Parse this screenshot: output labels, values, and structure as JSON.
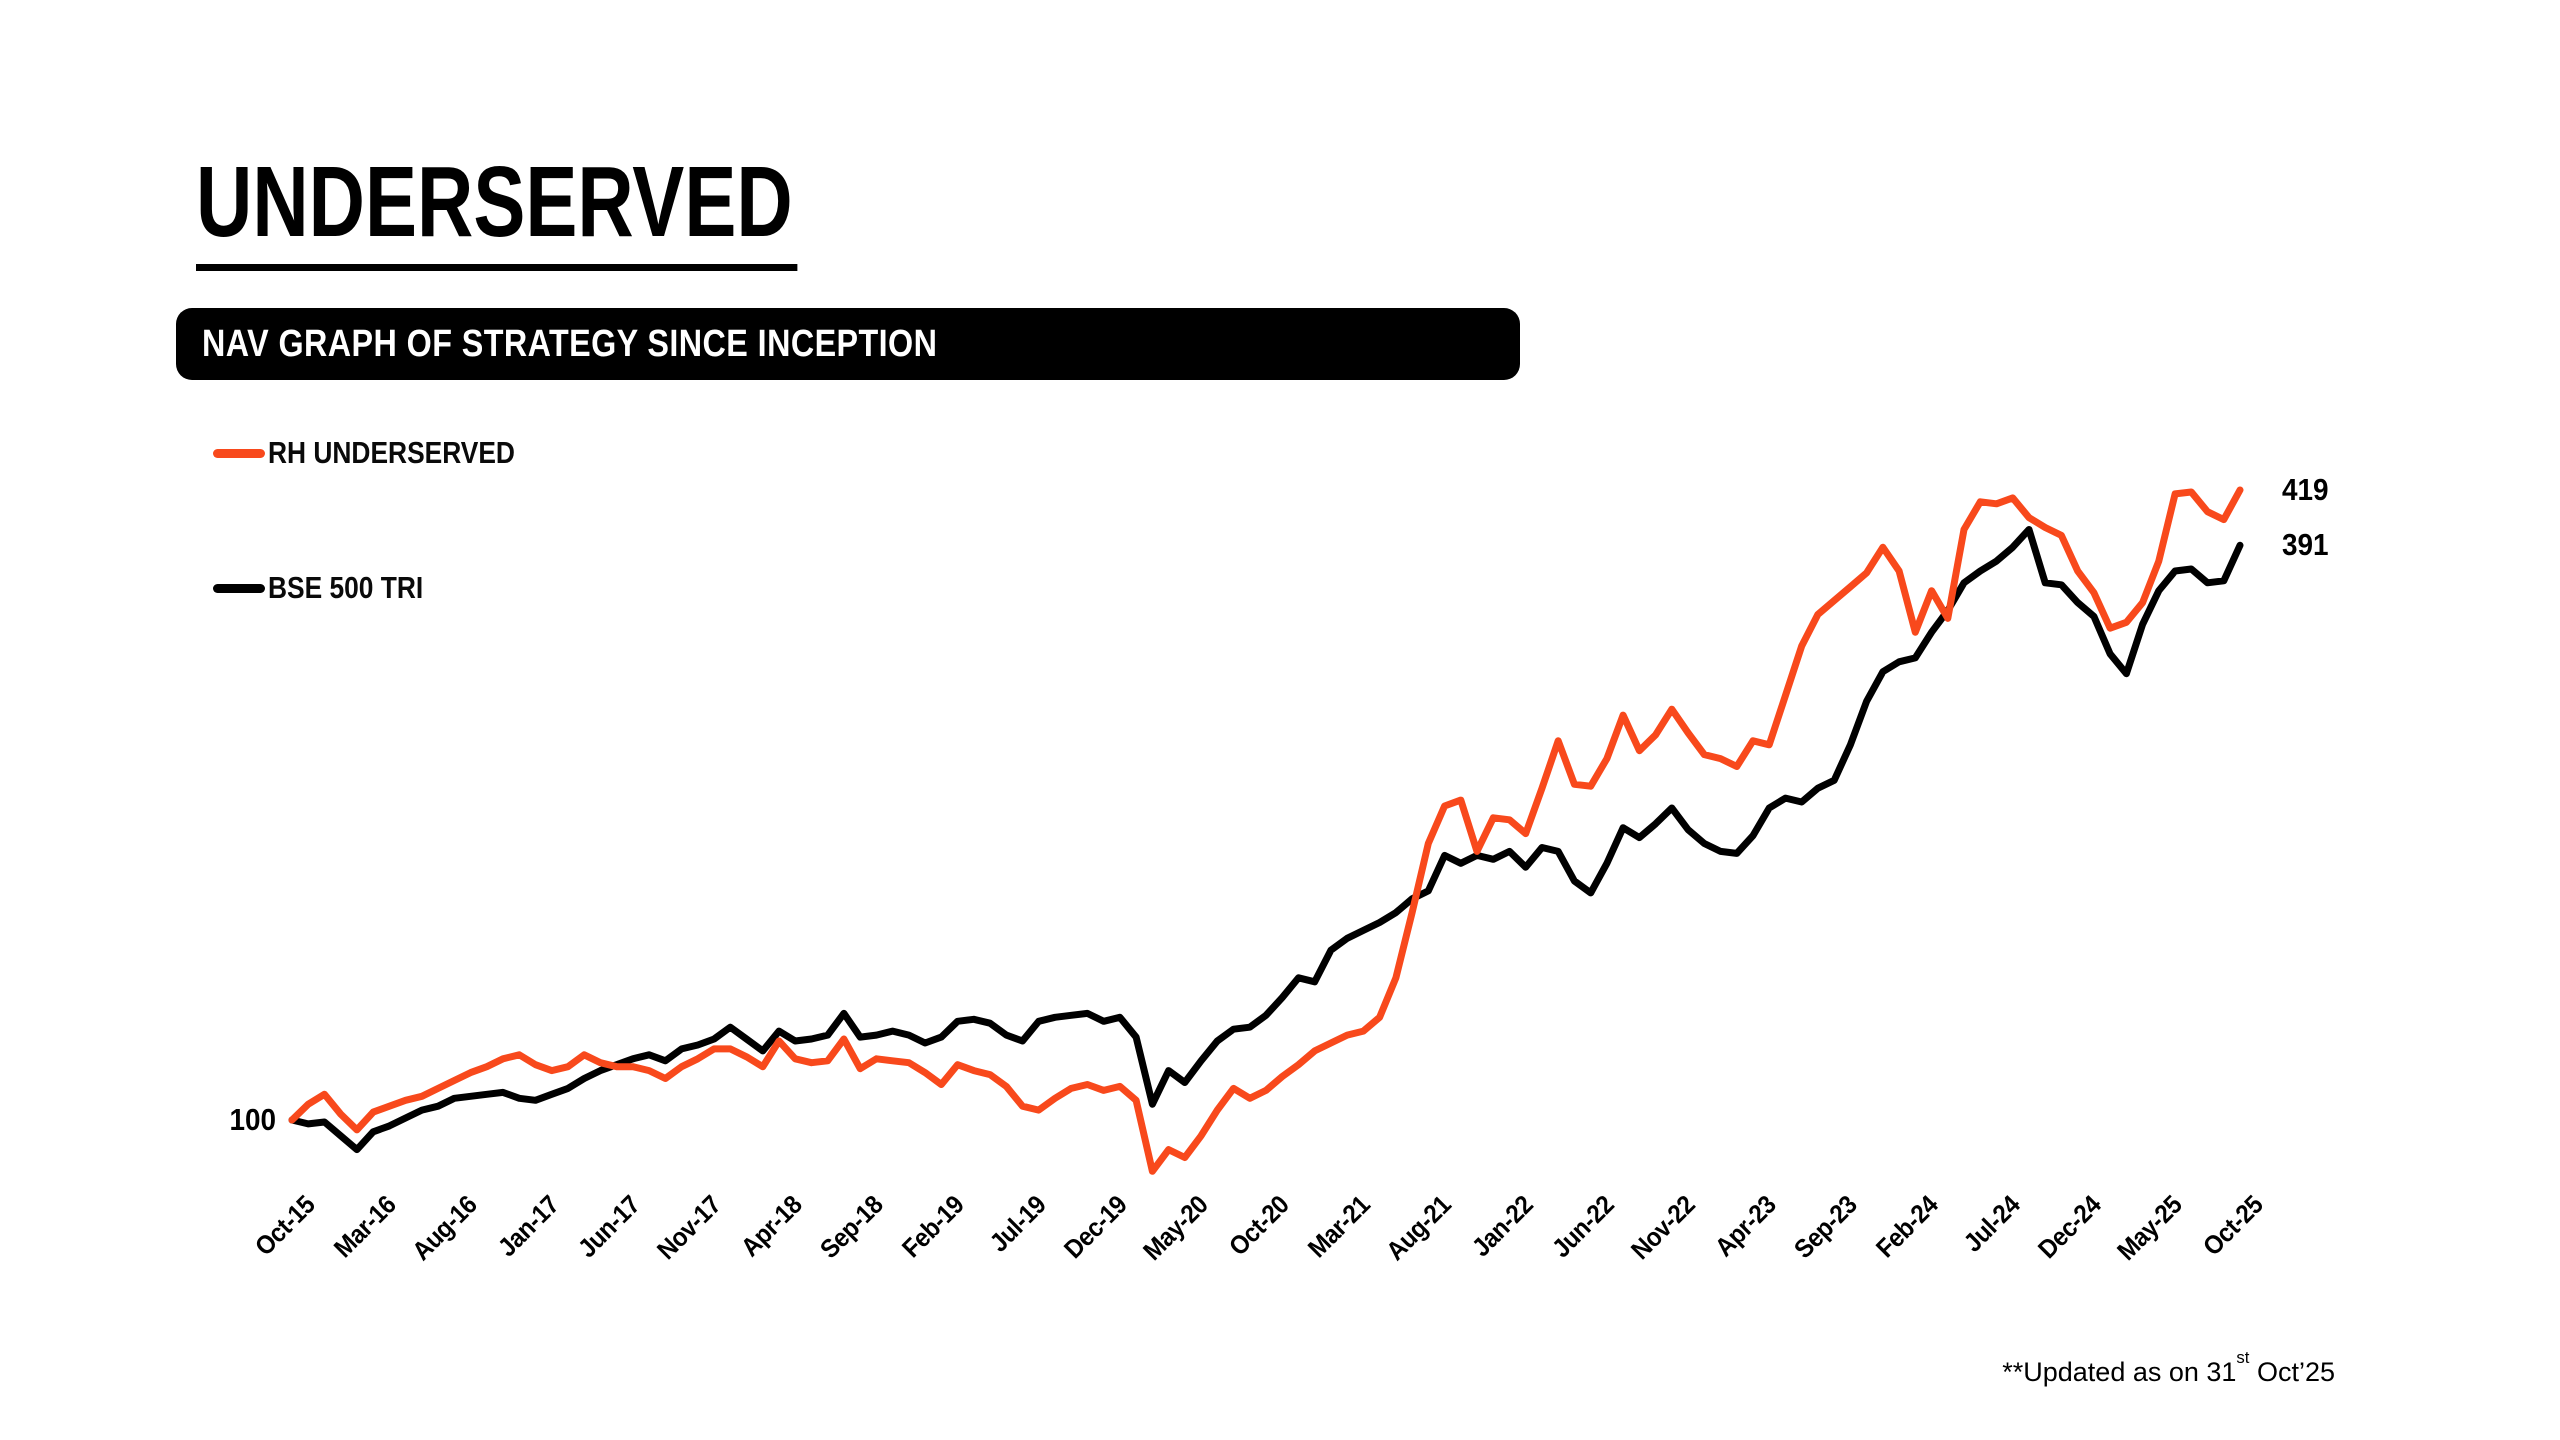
{
  "page": {
    "title": "UNDERSERVED"
  },
  "banner": {
    "label": "NAV GRAPH OF STRATEGY SINCE INCEPTION"
  },
  "legend": [
    {
      "name": "RH UNDERSERVED",
      "color": "#F8491C"
    },
    {
      "name": "BSE 500 TRI",
      "color": "#000000"
    }
  ],
  "footnote": {
    "prefix": "**Updated as on 31",
    "sup": "st",
    "suffix": " Oct’25"
  },
  "colors": {
    "accent_orange": "#F8491C",
    "line_black": "#000000",
    "background": "#FFFFFF"
  },
  "chart_data": {
    "type": "line",
    "title": "NAV GRAPH OF STRATEGY SINCE INCEPTION",
    "x_unit": "month",
    "x_start": "Oct-15",
    "x_end": "Oct-25",
    "months_total": 121,
    "tick_every": 5,
    "tick_labels": [
      "Oct-15",
      "Mar-16",
      "Aug-16",
      "Jan-17",
      "Jun-17",
      "Nov-17",
      "Apr-18",
      "Sep-18",
      "Feb-19",
      "Jul-19",
      "Dec-19",
      "May-20",
      "Oct-20",
      "Mar-21",
      "Aug-21",
      "Jan-22",
      "Jun-22",
      "Nov-22",
      "Apr-23",
      "Sep-23",
      "Feb-24",
      "Jul-24",
      "Dec-24",
      "May-25",
      "Oct-25"
    ],
    "baseline_label": "100",
    "end_labels": {
      "rh": "419",
      "bse": "391"
    },
    "ylim": [
      60,
      440
    ],
    "grid": false,
    "legend_position": "top-left",
    "series": [
      {
        "name": "RH UNDERSERVED",
        "color": "#F8491C",
        "values": [
          100,
          108,
          113,
          103,
          95,
          104,
          107,
          110,
          112,
          116,
          120,
          124,
          127,
          131,
          133,
          128,
          125,
          127,
          133,
          129,
          127,
          127,
          125,
          121,
          127,
          131,
          136,
          136,
          132,
          127,
          140,
          131,
          129,
          130,
          141,
          126,
          131,
          130,
          129,
          124,
          118,
          128,
          125,
          123,
          117,
          107,
          105,
          111,
          116,
          118,
          115,
          117,
          110,
          74,
          85,
          81,
          92,
          105,
          116,
          111,
          115,
          122,
          128,
          135,
          139,
          143,
          145,
          152,
          172,
          205,
          240,
          259,
          262,
          236,
          253,
          252,
          245,
          268,
          292,
          270,
          269,
          283,
          305,
          287,
          295,
          308,
          296,
          285,
          283,
          279,
          292,
          290,
          315,
          340,
          356,
          363,
          370,
          377,
          390,
          378,
          347,
          368,
          354,
          399,
          413,
          412,
          415,
          405,
          400,
          396,
          378,
          367,
          349,
          352,
          362,
          383,
          417,
          418,
          408,
          404,
          419
        ]
      },
      {
        "name": "BSE 500 TRI",
        "color": "#000000",
        "values": [
          100,
          98,
          99,
          92,
          85,
          94,
          97,
          101,
          105,
          107,
          111,
          112,
          113,
          114,
          111,
          110,
          113,
          116,
          121,
          125,
          128,
          131,
          133,
          130,
          136,
          138,
          141,
          147,
          141,
          135,
          145,
          140,
          141,
          143,
          154,
          142,
          143,
          145,
          143,
          139,
          142,
          150,
          151,
          149,
          143,
          140,
          150,
          152,
          153,
          154,
          150,
          152,
          142,
          108,
          125,
          119,
          130,
          140,
          146,
          147,
          153,
          162,
          172,
          170,
          186,
          192,
          196,
          200,
          205,
          212,
          216,
          234,
          230,
          234,
          232,
          236,
          228,
          238,
          236,
          221,
          215,
          230,
          248,
          243,
          250,
          258,
          247,
          240,
          236,
          235,
          244,
          258,
          263,
          261,
          268,
          272,
          290,
          312,
          327,
          332,
          334,
          347,
          358,
          372,
          378,
          383,
          390,
          399,
          372,
          371,
          362,
          355,
          336,
          326,
          351,
          368,
          378,
          379,
          372,
          373,
          391
        ]
      }
    ]
  }
}
